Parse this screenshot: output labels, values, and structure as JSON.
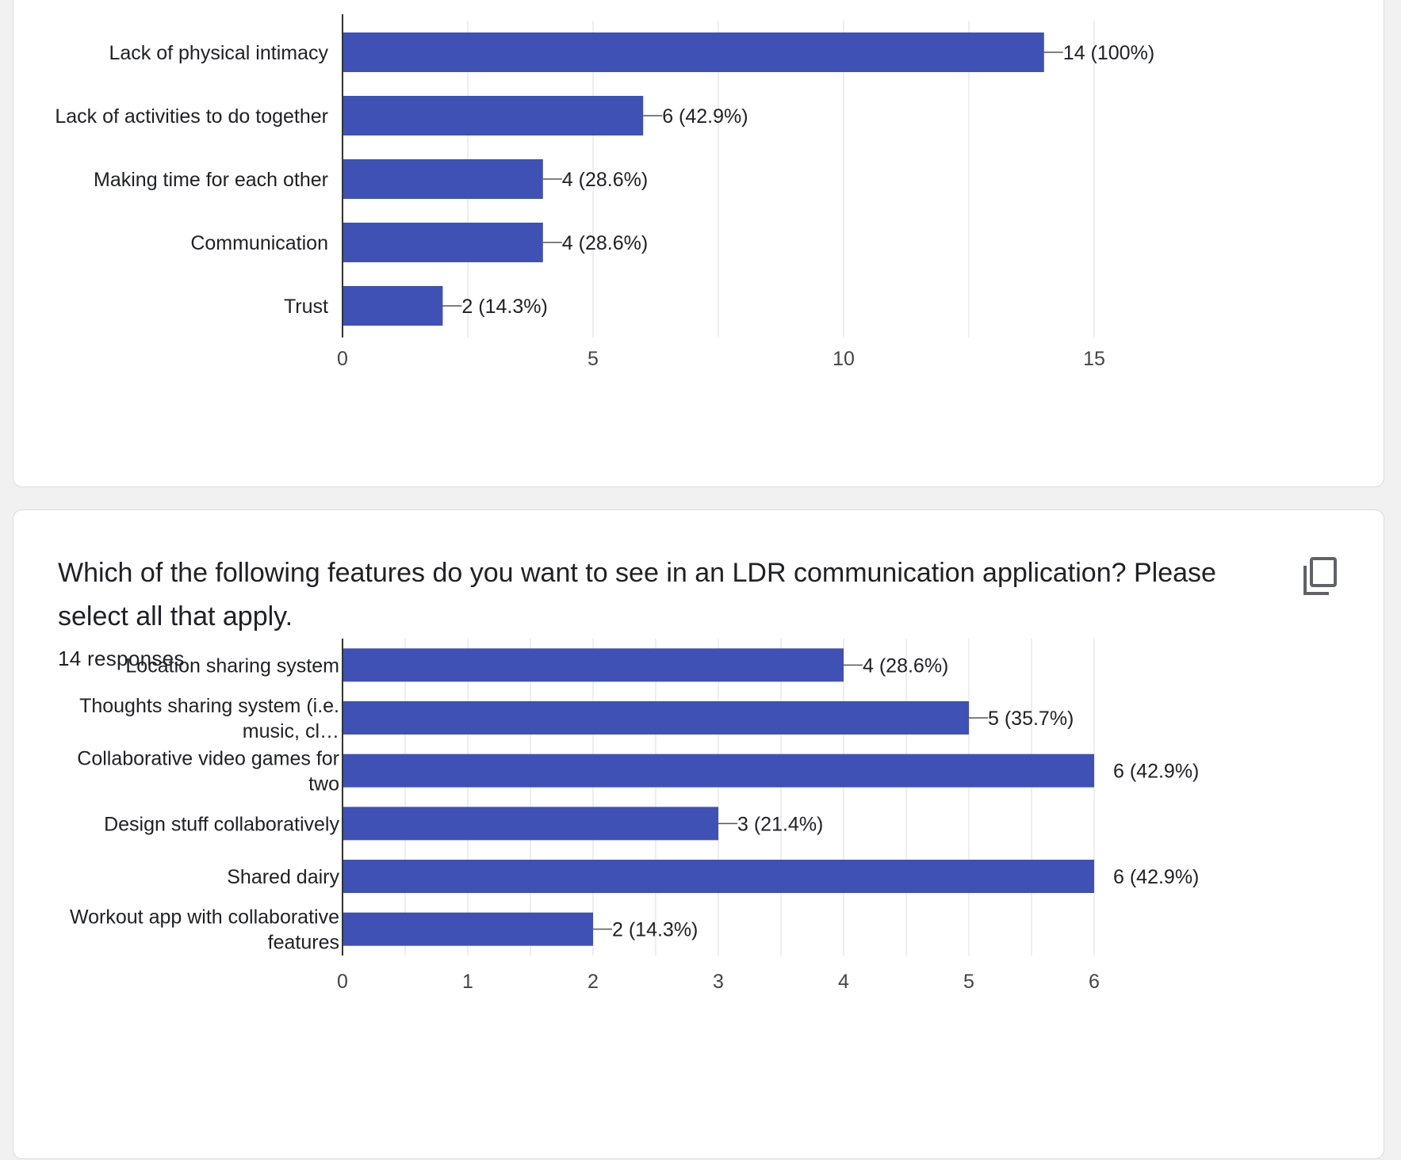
{
  "colors": {
    "bar": "#3f51b5",
    "grid": "#e8e8e8",
    "axis": "#333333",
    "text": "#202124"
  },
  "question_2": {
    "title": "Which of the following features do you want to see in an LDR communication application? Please select all that apply.",
    "responses": "14 responses",
    "copy_icon": "copy-icon"
  },
  "chart_data": [
    {
      "type": "bar",
      "orientation": "horizontal",
      "categories": [
        "Lack of physical intimacy",
        "Lack of activities to do together",
        "Making time for each other",
        "Communication",
        "Trust"
      ],
      "values": [
        14,
        6,
        4,
        4,
        2
      ],
      "labels": [
        "14 (100%)",
        "6 (42.9%)",
        "4 (28.6%)",
        "4 (28.6%)",
        "2 (14.3%)"
      ],
      "xlim": [
        0,
        15
      ],
      "ticks": [
        0,
        5,
        10,
        15
      ],
      "grid": true
    },
    {
      "type": "bar",
      "orientation": "horizontal",
      "categories": [
        [
          "Location sharing system"
        ],
        [
          "Thoughts sharing system (i.e.",
          "music, cl…"
        ],
        [
          "Collaborative video games for",
          "two"
        ],
        [
          "Design stuff collaboratively"
        ],
        [
          "Shared dairy"
        ],
        [
          "Workout app with collaborative",
          "features"
        ]
      ],
      "values": [
        4,
        5,
        6,
        3,
        6,
        2
      ],
      "labels": [
        "4 (28.6%)",
        "5 (35.7%)",
        "6 (42.9%)",
        "3 (21.4%)",
        "6 (42.9%)",
        "2 (14.3%)"
      ],
      "xlim": [
        0,
        6
      ],
      "ticks": [
        0,
        1,
        2,
        3,
        4,
        5,
        6
      ],
      "grid": true
    }
  ]
}
